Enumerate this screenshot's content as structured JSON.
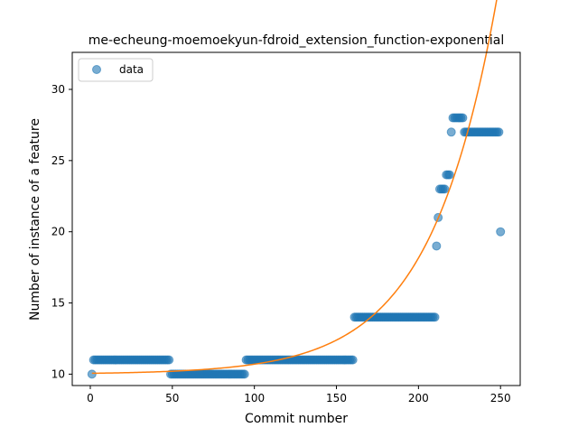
{
  "chart_data": {
    "type": "scatter",
    "title": "me-echeung-moemoekyun-fdroid_extension_function-exponential",
    "xlabel": "Commit number",
    "ylabel": "Number of instance of a feature",
    "xlim": [
      -11,
      262
    ],
    "ylim": [
      9.2,
      32.6
    ],
    "xticks": [
      0,
      50,
      100,
      150,
      200,
      250
    ],
    "yticks": [
      10,
      15,
      20,
      25,
      30
    ],
    "grid": false,
    "legend": {
      "placement": "top-left",
      "entries": [
        "data"
      ]
    },
    "colors": {
      "data": "#1f77b4",
      "fit": "#ff7f0e"
    },
    "series": [
      {
        "name": "data",
        "kind": "scatter",
        "segments": [
          {
            "x_start": 1,
            "x_end": 1,
            "y": 10
          },
          {
            "x_start": 2,
            "x_end": 48,
            "y": 11
          },
          {
            "x_start": 49,
            "x_end": 94,
            "y": 10
          },
          {
            "x_start": 95,
            "x_end": 160,
            "y": 11
          },
          {
            "x_start": 161,
            "x_end": 210,
            "y": 14
          },
          {
            "x_start": 211,
            "x_end": 211,
            "y": 19
          },
          {
            "x_start": 212,
            "x_end": 212,
            "y": 21
          },
          {
            "x_start": 213,
            "x_end": 216,
            "y": 23
          },
          {
            "x_start": 217,
            "x_end": 219,
            "y": 24
          },
          {
            "x_start": 220,
            "x_end": 220,
            "y": 27
          },
          {
            "x_start": 221,
            "x_end": 227,
            "y": 28
          },
          {
            "x_start": 228,
            "x_end": 249,
            "y": 27
          },
          {
            "x_start": 250,
            "x_end": 250,
            "y": 20
          }
        ]
      },
      {
        "kind": "line",
        "fit": {
          "model": "exponential",
          "a": 0.06,
          "b": 0.02456,
          "c": 10.0
        },
        "x_range": [
          1,
          250
        ]
      }
    ]
  }
}
